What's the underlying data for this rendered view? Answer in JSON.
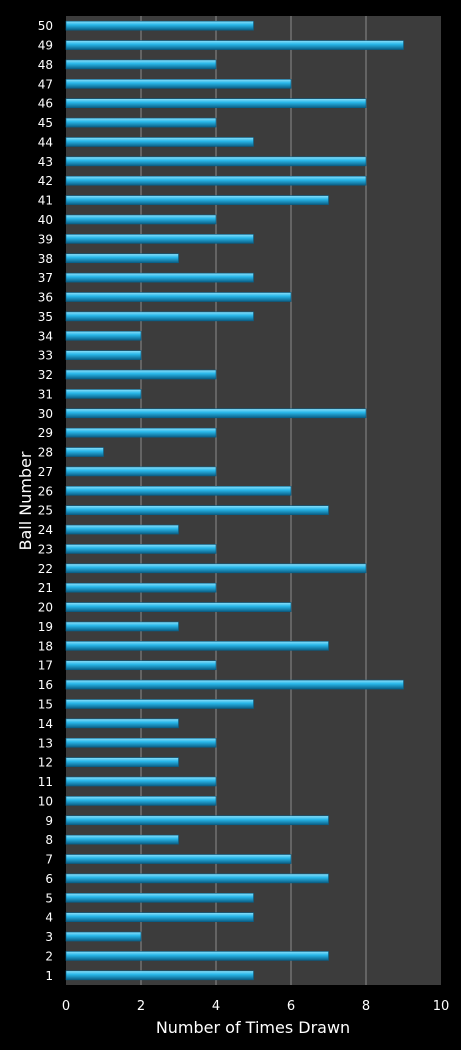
{
  "colors": {
    "background": "#000000",
    "plot_area": "#3c3c3c",
    "gridline": "#8c8c8c",
    "bar": "#29b8ea",
    "bar_highlight": "#8fe0fa",
    "bar_shadow": "#0a5f86",
    "text": "#ffffff"
  },
  "chart_data": {
    "type": "bar",
    "orientation": "horizontal",
    "title": "",
    "xlabel": "Number of Times Drawn",
    "ylabel": "Ball Number",
    "xlim": [
      0,
      10
    ],
    "xticks": [
      "0",
      "2",
      "4",
      "6",
      "8",
      "10"
    ],
    "grid": true,
    "legend": "none",
    "categories": [
      "1",
      "2",
      "3",
      "4",
      "5",
      "6",
      "7",
      "8",
      "9",
      "10",
      "11",
      "12",
      "13",
      "14",
      "15",
      "16",
      "17",
      "18",
      "19",
      "20",
      "21",
      "22",
      "23",
      "24",
      "25",
      "26",
      "27",
      "28",
      "29",
      "30",
      "31",
      "32",
      "33",
      "34",
      "35",
      "36",
      "37",
      "38",
      "39",
      "40",
      "41",
      "42",
      "43",
      "44",
      "45",
      "46",
      "47",
      "48",
      "49",
      "50"
    ],
    "values": [
      5,
      7,
      2,
      5,
      5,
      7,
      6,
      3,
      7,
      4,
      4,
      3,
      4,
      3,
      5,
      9,
      4,
      7,
      3,
      6,
      4,
      8,
      4,
      3,
      7,
      6,
      4,
      1,
      4,
      8,
      2,
      4,
      2,
      2,
      5,
      6,
      5,
      3,
      5,
      4,
      7,
      8,
      8,
      5,
      4,
      8,
      6,
      4,
      9,
      5
    ]
  }
}
